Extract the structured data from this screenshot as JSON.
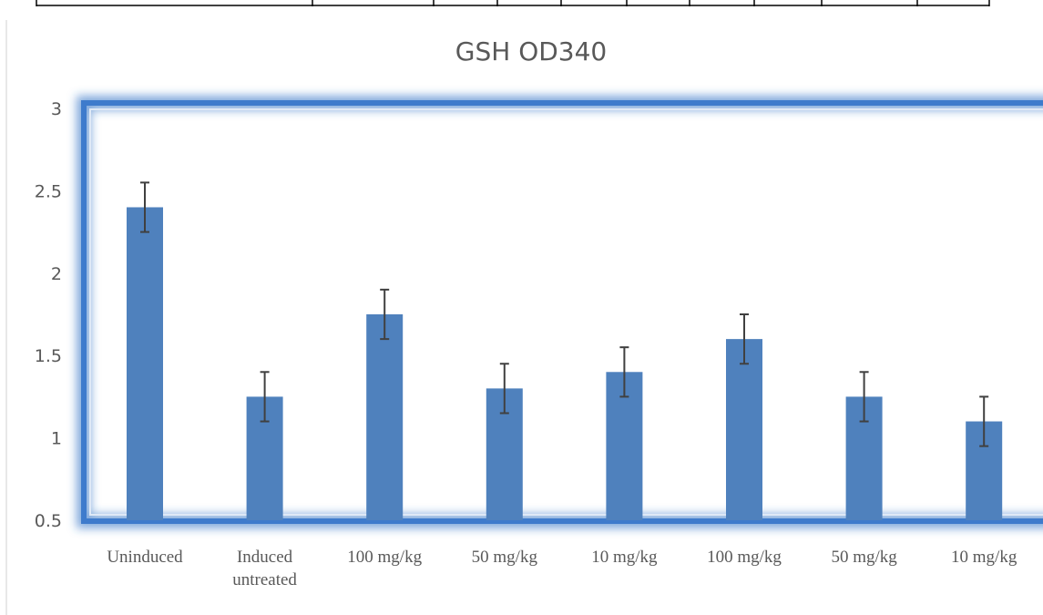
{
  "chart_data": {
    "type": "bar",
    "title": "GSH OD340",
    "xlabel": "",
    "ylabel": "",
    "categories": [
      [
        "Uninduced"
      ],
      [
        "Induced",
        "untreated"
      ],
      [
        "100 mg/kg"
      ],
      [
        "50 mg/kg"
      ],
      [
        "10 mg/kg"
      ],
      [
        "100 mg/kg"
      ],
      [
        "50 mg/kg"
      ],
      [
        "10 mg/kg"
      ]
    ],
    "values": [
      2.4,
      1.25,
      1.75,
      1.3,
      1.4,
      1.6,
      1.25,
      1.1
    ],
    "errors": [
      0.15,
      0.15,
      0.15,
      0.15,
      0.15,
      0.15,
      0.15,
      0.15
    ],
    "ylim": [
      0.5,
      3
    ],
    "yticks": [
      "0.5",
      "1",
      "1.5",
      "2",
      "2.5",
      "3"
    ],
    "grid": false,
    "legend": "none",
    "bar_color": "#4f81bd",
    "error_bar_color": "#404040",
    "highlight_frame_color": "#2f6fc4"
  }
}
